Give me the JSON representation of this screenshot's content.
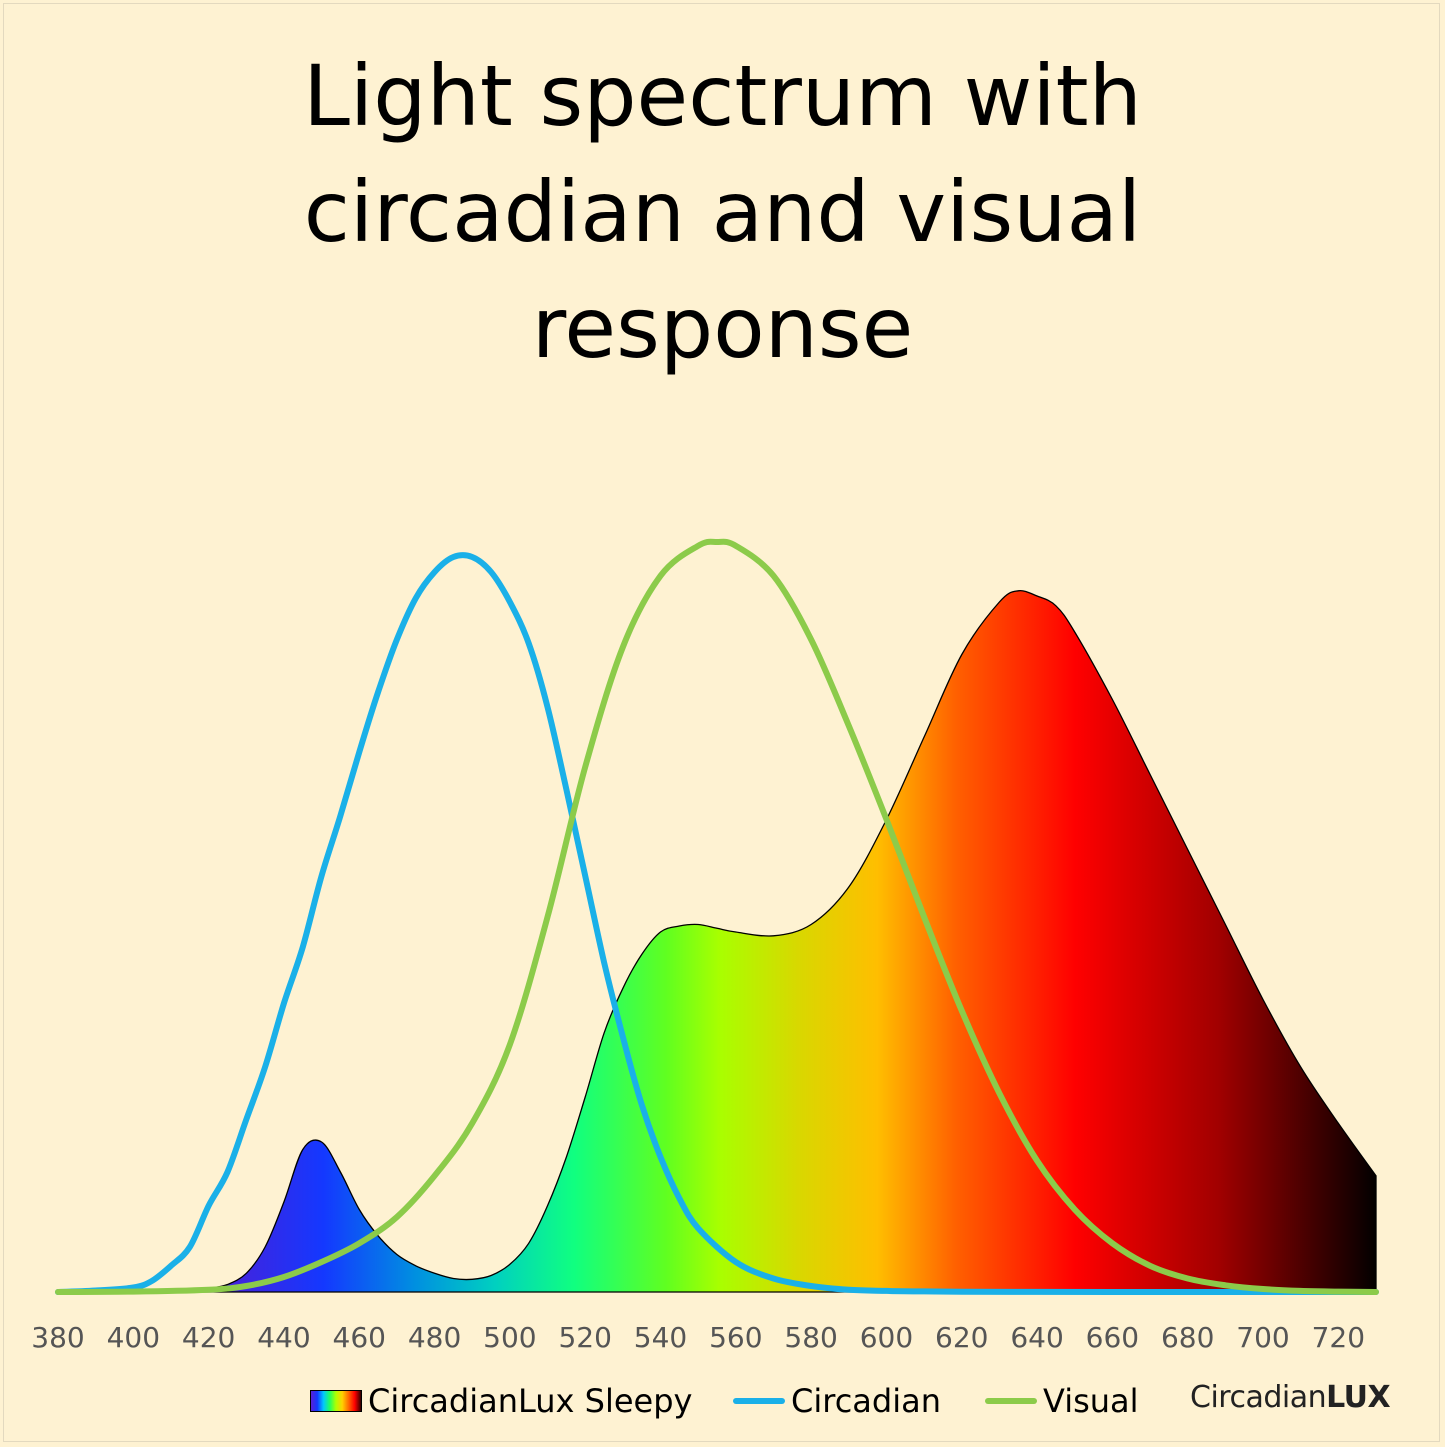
{
  "title_lines": [
    "Light spectrum with",
    "circadian and visual",
    "response"
  ],
  "legend": {
    "sleepy": "CircadianLux Sleepy",
    "circadian": "Circadian",
    "visual": "Visual"
  },
  "brand": {
    "light": "Circadian",
    "bold": "LUX"
  },
  "colors": {
    "background": "#FEF2D2",
    "circadian": "#1AB0E8",
    "visual": "#8CCB4A"
  },
  "chart_data": {
    "type": "area",
    "xlim": [
      380,
      730
    ],
    "ylim": [
      0,
      1.0
    ],
    "x_ticks": [
      380,
      400,
      420,
      440,
      460,
      480,
      500,
      520,
      540,
      560,
      580,
      600,
      620,
      640,
      660,
      680,
      700,
      720
    ],
    "series": [
      {
        "name": "CircadianLux Sleepy",
        "style": "spectral-gradient-fill",
        "x": [
          380,
          400,
          410,
          415,
          420,
          425,
          430,
          435,
          440,
          445,
          450,
          455,
          460,
          465,
          470,
          475,
          480,
          485,
          490,
          495,
          500,
          505,
          510,
          515,
          520,
          525,
          530,
          535,
          540,
          545,
          550,
          555,
          560,
          570,
          580,
          590,
          600,
          610,
          620,
          630,
          635,
          640,
          645,
          650,
          660,
          670,
          680,
          690,
          700,
          710,
          720,
          730
        ],
        "y": [
          0,
          0,
          0,
          0.002,
          0.005,
          0.01,
          0.025,
          0.06,
          0.12,
          0.19,
          0.2,
          0.16,
          0.11,
          0.075,
          0.05,
          0.035,
          0.025,
          0.018,
          0.017,
          0.022,
          0.037,
          0.065,
          0.115,
          0.18,
          0.26,
          0.345,
          0.405,
          0.45,
          0.48,
          0.488,
          0.49,
          0.485,
          0.48,
          0.475,
          0.49,
          0.54,
          0.63,
          0.74,
          0.85,
          0.92,
          0.935,
          0.928,
          0.915,
          0.88,
          0.79,
          0.69,
          0.59,
          0.49,
          0.39,
          0.3,
          0.225,
          0.155
        ]
      },
      {
        "name": "Circadian",
        "style": "line",
        "x": [
          380,
          390,
          400,
          405,
          410,
          415,
          420,
          425,
          430,
          435,
          440,
          445,
          450,
          455,
          460,
          465,
          470,
          475,
          480,
          485,
          490,
          495,
          500,
          505,
          510,
          515,
          520,
          525,
          530,
          535,
          540,
          545,
          550,
          560,
          570,
          580,
          590,
          600,
          610,
          620,
          640,
          660,
          680,
          700,
          730
        ],
        "y": [
          0,
          0.002,
          0.006,
          0.015,
          0.035,
          0.06,
          0.115,
          0.16,
          0.23,
          0.3,
          0.385,
          0.46,
          0.555,
          0.635,
          0.72,
          0.8,
          0.87,
          0.925,
          0.96,
          0.98,
          0.98,
          0.96,
          0.92,
          0.865,
          0.78,
          0.67,
          0.555,
          0.44,
          0.34,
          0.25,
          0.18,
          0.125,
          0.085,
          0.04,
          0.018,
          0.008,
          0.003,
          0.0015,
          0.0008,
          0.0004,
          0.0001,
          0,
          0,
          0,
          0
        ]
      },
      {
        "name": "Visual",
        "style": "line",
        "x": [
          380,
          400,
          420,
          430,
          440,
          450,
          460,
          470,
          480,
          490,
          500,
          510,
          520,
          530,
          540,
          550,
          555,
          560,
          570,
          580,
          590,
          600,
          610,
          620,
          630,
          640,
          650,
          660,
          670,
          680,
          690,
          700,
          710,
          720,
          730
        ],
        "y": [
          0,
          0.0005,
          0.003,
          0.008,
          0.02,
          0.04,
          0.065,
          0.1,
          0.155,
          0.225,
          0.33,
          0.5,
          0.7,
          0.86,
          0.955,
          0.995,
          1.0,
          0.995,
          0.955,
          0.87,
          0.755,
          0.63,
          0.5,
          0.375,
          0.265,
          0.175,
          0.11,
          0.065,
          0.035,
          0.018,
          0.009,
          0.004,
          0.0015,
          0.0005,
          0
        ]
      }
    ]
  }
}
